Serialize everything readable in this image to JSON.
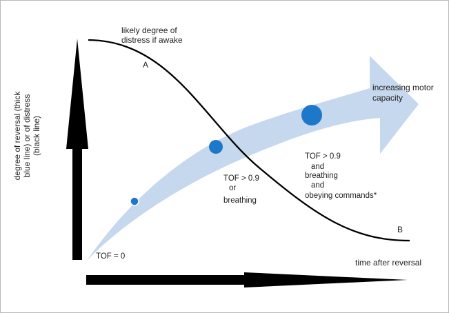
{
  "diagram": {
    "labels": {
      "distress_line1": "likely degree of",
      "distress_line2": "distress if awake",
      "point_a": "A",
      "point_b": "B",
      "motor_line1": "increasing motor",
      "motor_line2": "capacity",
      "tof_zero": "TOF = 0",
      "mid_line1": "TOF > 0.9",
      "mid_line2": "or",
      "mid_line3": "breathing",
      "right_line1": "TOF > 0.9",
      "right_line2": "and",
      "right_line3": "breathing",
      "right_line4": "and",
      "right_line5": "obeying commands*",
      "time_label": "time after reversal",
      "y_line1": "degree of reversal (thick",
      "y_line2": "blue line) or of distress",
      "y_line3": "(black line)"
    },
    "colors": {
      "blue_band": "#c5d8ee",
      "dot": "#1d78c9",
      "curve": "#000000",
      "axis": "#000000"
    }
  }
}
